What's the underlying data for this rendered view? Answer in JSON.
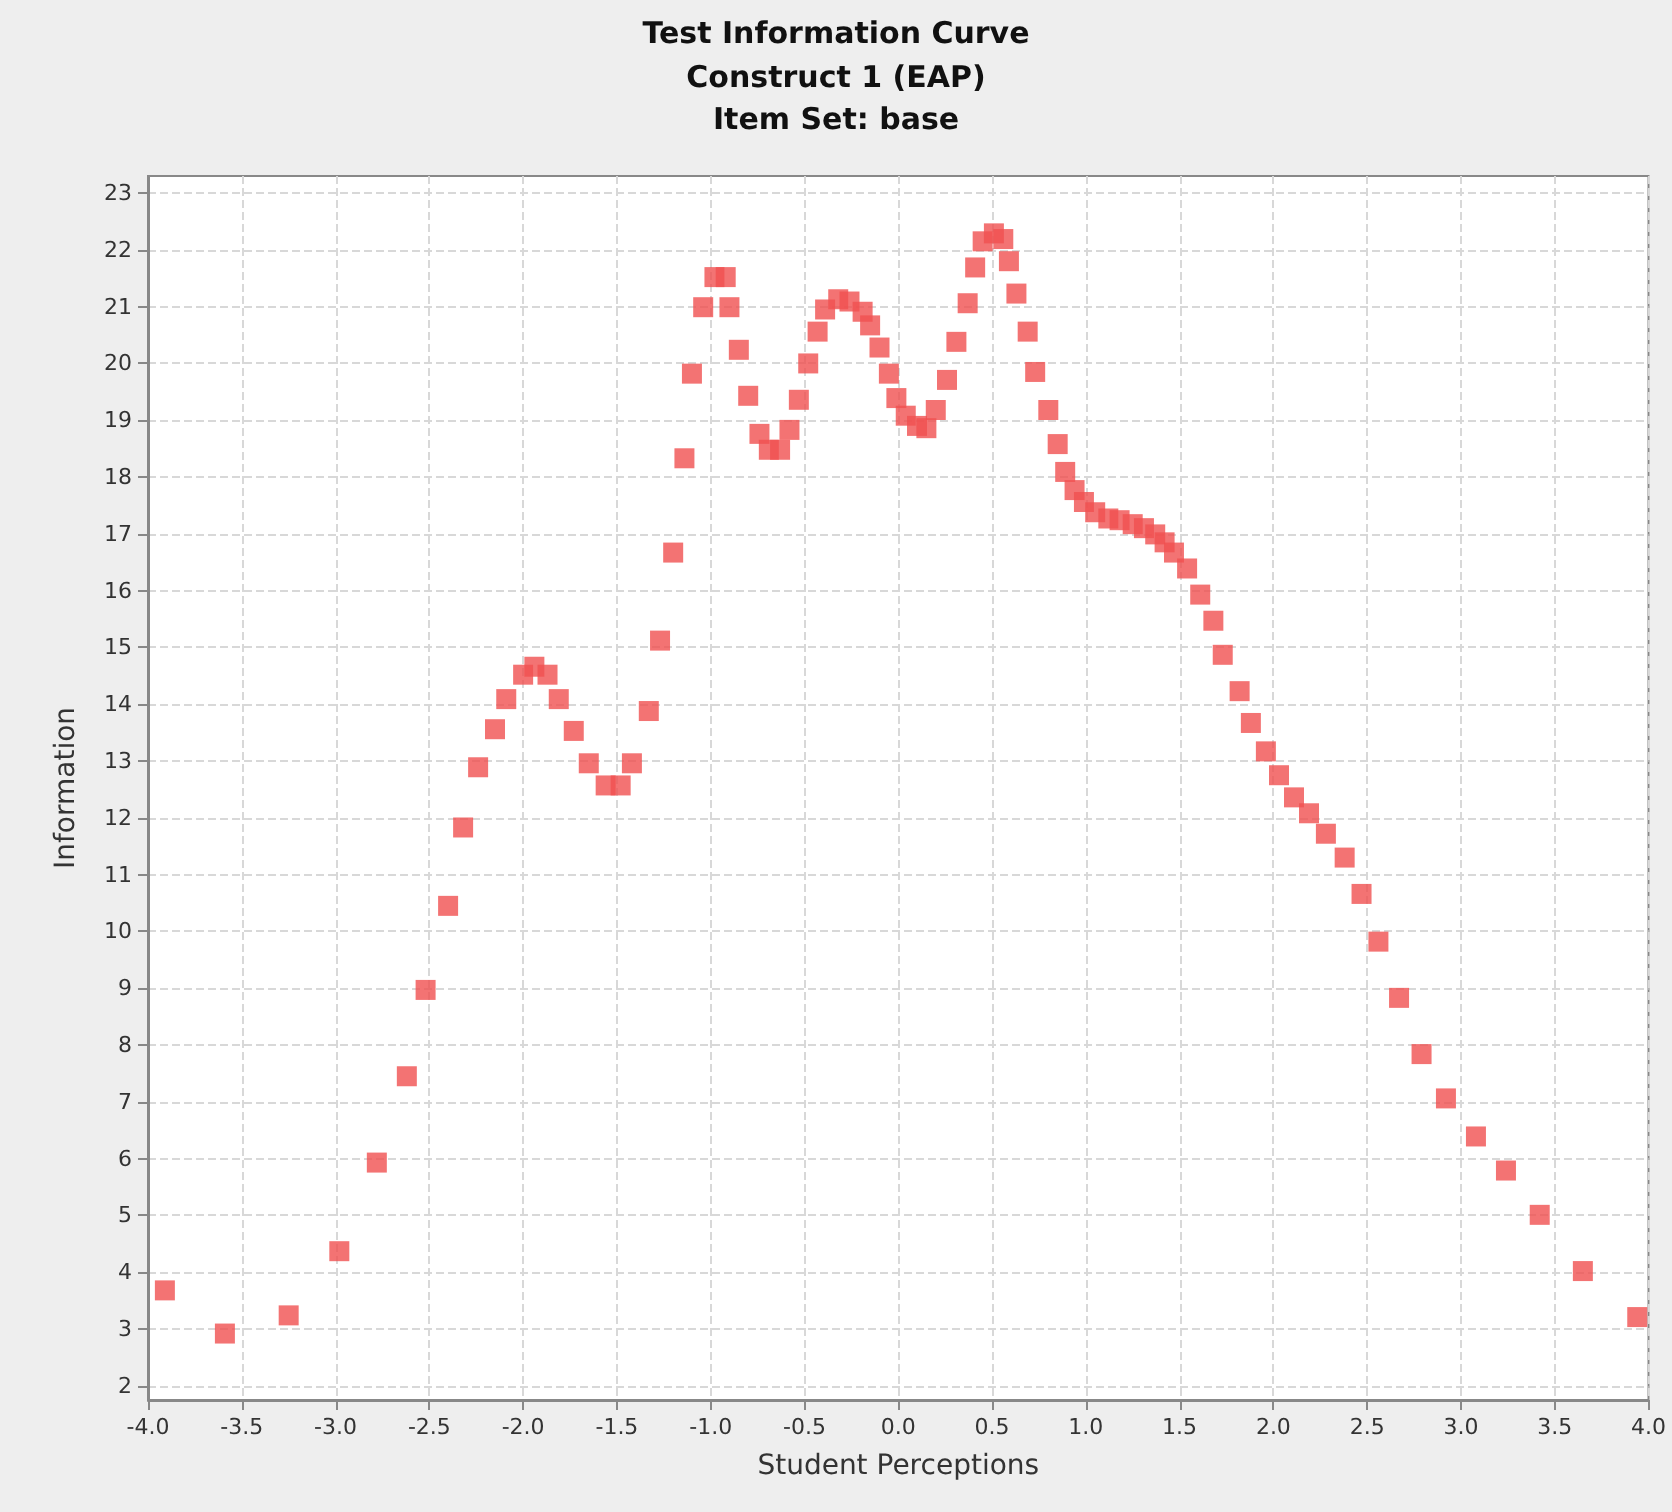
{
  "chart_data": {
    "type": "scatter",
    "title": "Test Information Curve",
    "subtitle": "Construct 1 (EAP)\nItem Set: base",
    "xlabel": "Student Perceptions",
    "ylabel": "Information",
    "x": [
      -3.91,
      -3.59,
      -3.25,
      -2.98,
      -2.78,
      -2.62,
      -2.52,
      -2.4,
      -2.32,
      -2.24,
      -2.15,
      -2.09,
      -2.0,
      -1.94,
      -1.87,
      -1.81,
      -1.73,
      -1.65,
      -1.56,
      -1.48,
      -1.42,
      -1.33,
      -1.27,
      -1.2,
      -1.14,
      -1.1,
      -1.04,
      -0.98,
      -0.92,
      -0.9,
      -0.85,
      -0.8,
      -0.74,
      -0.69,
      -0.63,
      -0.58,
      -0.53,
      -0.48,
      -0.43,
      -0.39,
      -0.32,
      -0.26,
      -0.19,
      -0.15,
      -0.1,
      -0.05,
      -0.01,
      0.04,
      0.1,
      0.15,
      0.2,
      0.26,
      0.31,
      0.37,
      0.41,
      0.45,
      0.51,
      0.56,
      0.59,
      0.63,
      0.69,
      0.73,
      0.8,
      0.85,
      0.89,
      0.94,
      0.99,
      1.05,
      1.12,
      1.18,
      1.25,
      1.31,
      1.37,
      1.42,
      1.47,
      1.54,
      1.61,
      1.68,
      1.73,
      1.82,
      1.88,
      1.96,
      2.03,
      2.11,
      2.19,
      2.28,
      2.38,
      2.47,
      2.56,
      2.67,
      2.79,
      2.92,
      3.08,
      3.24,
      3.42,
      3.65,
      3.94
    ],
    "series": [
      {
        "color": "#f05050",
        "values": [
          3.68,
          2.92,
          3.24,
          4.37,
          5.93,
          7.45,
          8.97,
          10.45,
          11.83,
          12.89,
          13.56,
          14.09,
          14.52,
          14.66,
          14.52,
          14.09,
          13.53,
          12.96,
          12.57,
          12.57,
          12.96,
          13.88,
          15.12,
          16.67,
          18.33,
          19.82,
          20.99,
          21.52,
          21.52,
          20.99,
          20.24,
          19.43,
          18.76,
          18.48,
          18.48,
          18.83,
          19.36,
          20.0,
          20.56,
          20.95,
          21.13,
          21.09,
          20.91,
          20.67,
          20.28,
          19.82,
          19.39,
          19.08,
          18.9,
          18.86,
          19.18,
          19.71,
          20.38,
          21.06,
          21.69,
          22.15,
          22.29,
          22.19,
          21.8,
          21.23,
          20.56,
          19.85,
          19.18,
          18.58,
          18.09,
          17.77,
          17.56,
          17.38,
          17.27,
          17.24,
          17.17,
          17.1,
          16.99,
          16.85,
          16.67,
          16.39,
          15.93,
          15.47,
          14.87,
          14.23,
          13.67,
          13.17,
          12.75,
          12.36,
          12.08,
          11.72,
          11.3,
          10.66,
          9.82,
          8.83,
          7.84,
          7.06,
          6.39,
          5.79,
          5.01,
          4.02,
          3.21
        ]
      }
    ],
    "xlim": [
      -4,
      4
    ],
    "ylim": [
      1.75,
      23.3
    ],
    "xticks": [
      {
        "value": -4,
        "label": "-4.0"
      },
      -3.5,
      {
        "value": -3,
        "label": "-3.0"
      },
      -2.5,
      {
        "value": -2,
        "label": "-2.0"
      },
      -1.5,
      {
        "value": -1,
        "label": "-1.0"
      },
      -0.5,
      {
        "value": 0,
        "label": "0.0"
      },
      0.5,
      {
        "value": 1,
        "label": "1.0"
      },
      1.5,
      {
        "value": 2,
        "label": "2.0"
      },
      2.5,
      {
        "value": 3,
        "label": "3.0"
      },
      3.5,
      {
        "value": 4,
        "label": "4.0"
      }
    ],
    "yticks": [
      2,
      3,
      4,
      5,
      6,
      7,
      8,
      9,
      10,
      11,
      12,
      13,
      14,
      15,
      16,
      17,
      18,
      19,
      20,
      21,
      22,
      23
    ],
    "grid": true,
    "marker": "square"
  }
}
